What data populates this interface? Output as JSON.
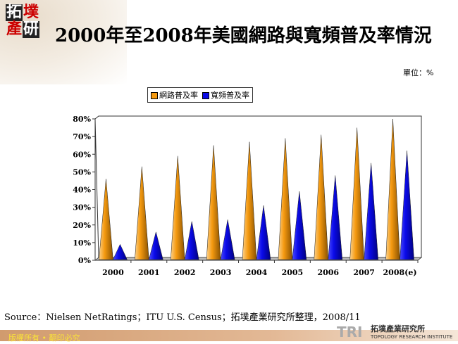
{
  "logo": {
    "chars": [
      "拓",
      "墣",
      "產",
      "研"
    ]
  },
  "title": "2000年至2008年美國網路與寬頻普及率情況",
  "unit": "單位：%",
  "source": "Source：Nielsen NetRatings；ITU U.S. Census；拓墣產業研究所整理，2008/11",
  "footer": "版權所有 • 翻印必究",
  "institute": {
    "mark": "TRI",
    "name": "拓墣產業研究所",
    "english": "TOPOLOGY RESEARCH INSTITUTE"
  },
  "chart_data": {
    "type": "bar",
    "style": "3d-cone",
    "categories": [
      "2000",
      "2001",
      "2002",
      "2003",
      "2004",
      "2005",
      "2006",
      "2007",
      "2008(e)"
    ],
    "series": [
      {
        "name": "網路普及率",
        "color": "#f59a10",
        "values": [
          46,
          53,
          59,
          65,
          67,
          69,
          71,
          75,
          80
        ]
      },
      {
        "name": "寬頻普及率",
        "color": "#0a0ae8",
        "values": [
          9,
          16,
          22,
          23,
          31,
          39,
          48,
          55,
          62
        ]
      }
    ],
    "ylim": [
      0,
      80
    ],
    "yticks": [
      "0%",
      "10%",
      "20%",
      "30%",
      "40%",
      "50%",
      "60%",
      "70%",
      "80%"
    ],
    "legend": "top",
    "grid": false
  }
}
